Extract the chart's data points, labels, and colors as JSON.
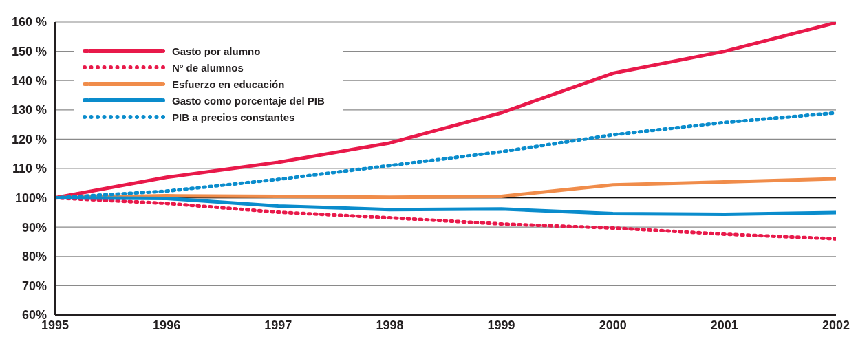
{
  "chart_data": {
    "type": "line",
    "x": [
      1995,
      1996,
      1997,
      1998,
      1999,
      2000,
      2001,
      2002
    ],
    "xlim": [
      1995,
      2002
    ],
    "xticks": [
      1995,
      1996,
      1997,
      1998,
      1999,
      2000,
      2001,
      2002
    ],
    "ylim": [
      60,
      160
    ],
    "yticks": [
      {
        "value": 60,
        "label": "60%"
      },
      {
        "value": 70,
        "label": "70%"
      },
      {
        "value": 80,
        "label": "80%"
      },
      {
        "value": 90,
        "label": "90%"
      },
      {
        "value": 100,
        "label": "100%"
      },
      {
        "value": 110,
        "label": "110 %"
      },
      {
        "value": 120,
        "label": "120 %"
      },
      {
        "value": 130,
        "label": "130 %"
      },
      {
        "value": 140,
        "label": "140 %"
      },
      {
        "value": 150,
        "label": "150 %"
      },
      {
        "value": 160,
        "label": "160 %"
      }
    ],
    "series": [
      {
        "name": "Gasto por alumno",
        "color": "#e8194a",
        "line_style": "solid",
        "values": [
          100,
          107,
          112.1,
          118.7,
          129,
          142.5,
          150,
          159.8
        ]
      },
      {
        "name": "Nº de alumnos",
        "color": "#e8194a",
        "line_style": "dotted",
        "values": [
          100,
          98.1,
          95.1,
          93.2,
          91.1,
          89.7,
          87.6,
          86
        ]
      },
      {
        "name": "Esfuerzo en educación",
        "color": "#f08c4a",
        "line_style": "solid",
        "values": [
          100,
          100.7,
          100.5,
          100.2,
          100.5,
          104.4,
          105.4,
          106.5
        ]
      },
      {
        "name": "Gasto como porcentaje del PIB",
        "color": "#0a8ccc",
        "line_style": "solid",
        "values": [
          100,
          99.8,
          97.2,
          96,
          96.2,
          94.6,
          94.4,
          95
        ]
      },
      {
        "name": "PIB a precios constantes",
        "color": "#0a8ccc",
        "line_style": "dotted",
        "values": [
          100,
          102.3,
          106.3,
          111,
          115.7,
          121.5,
          125.7,
          129
        ]
      }
    ],
    "ref_lines": [
      {
        "axis": "y",
        "value": 100,
        "color": "#111111"
      }
    ],
    "grid": "y",
    "legend": "top left",
    "marker": "none"
  }
}
